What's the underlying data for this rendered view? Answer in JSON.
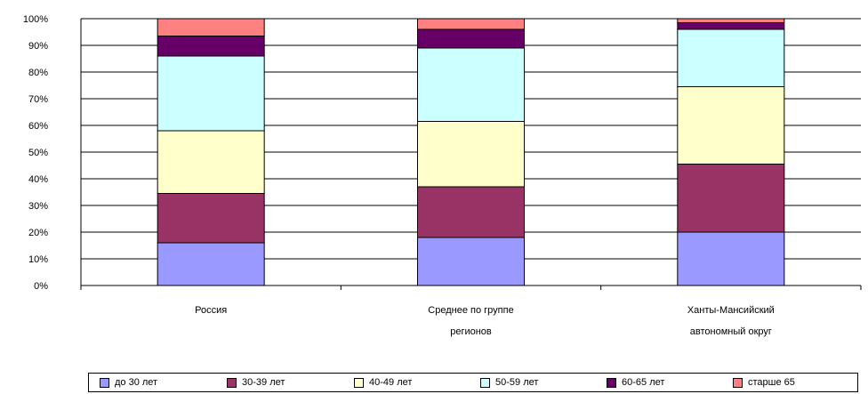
{
  "chart_data": {
    "type": "bar",
    "stacked": true,
    "percent": true,
    "categories": [
      [
        "Россия"
      ],
      [
        "Среднее по группе",
        "регионов"
      ],
      [
        "Ханты-Мансийский",
        "автономный округ"
      ]
    ],
    "y_ticks": [
      "0%",
      "10%",
      "20%",
      "30%",
      "40%",
      "50%",
      "60%",
      "70%",
      "80%",
      "90%",
      "100%"
    ],
    "ylim": [
      0,
      100
    ],
    "grid": true,
    "legend_position": "bottom",
    "series": [
      {
        "name": "до 30 лет",
        "color": "#9999ff",
        "values": [
          16,
          18,
          20
        ]
      },
      {
        "name": "30-39 лет",
        "color": "#993366",
        "values": [
          18.5,
          19,
          25.5
        ]
      },
      {
        "name": "40-49 лет",
        "color": "#ffffcc",
        "values": [
          23.5,
          24.5,
          29
        ]
      },
      {
        "name": "50-59 лет",
        "color": "#ccffff",
        "values": [
          28,
          27.5,
          21.5
        ]
      },
      {
        "name": "60-65 лет",
        "color": "#660066",
        "values": [
          7.5,
          7,
          2.5
        ]
      },
      {
        "name": "старше 65",
        "color": "#ff8080",
        "values": [
          6.5,
          4,
          1.5
        ]
      }
    ]
  }
}
